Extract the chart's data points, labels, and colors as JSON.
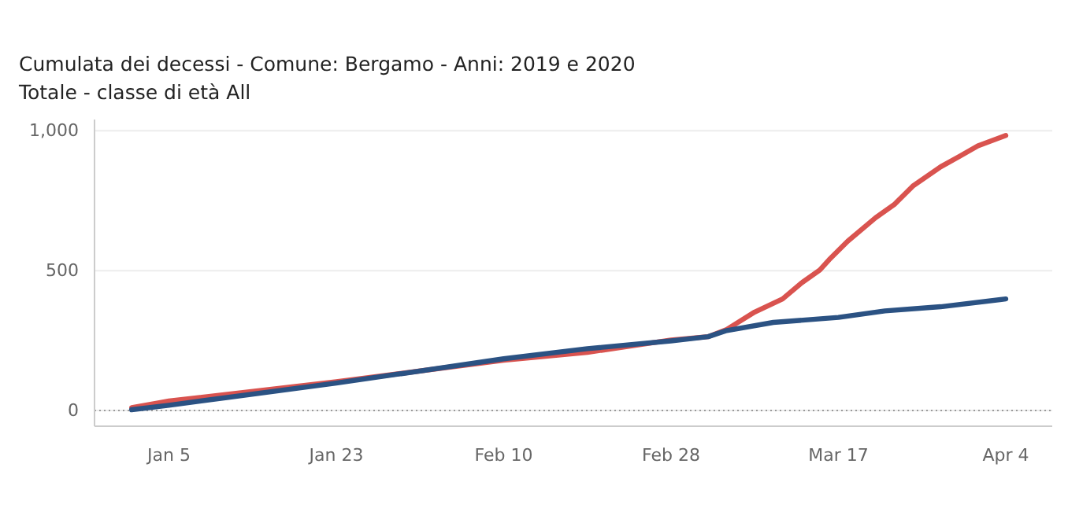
{
  "chart_data": {
    "type": "line",
    "title": "Cumulata dei decessi -  Comune: Bergamo  -  Anni: 2019 e 2020",
    "subtitle": "Totale - classe di età  All",
    "xlim": [
      "2019-12-28",
      "2020-04-09"
    ],
    "xticks": [
      {
        "value": "2020-01-05",
        "label": "Jan 5"
      },
      {
        "value": "2020-01-23",
        "label": "Jan 23"
      },
      {
        "value": "2020-02-10",
        "label": "Feb 10"
      },
      {
        "value": "2020-02-28",
        "label": "Feb 28"
      },
      {
        "value": "2020-03-17",
        "label": "Mar 17"
      },
      {
        "value": "2020-04-04",
        "label": "Apr 4"
      }
    ],
    "ylim": [
      -56,
      1040
    ],
    "yticks": [
      0,
      500,
      {
        "value": 1000,
        "label": "1,000"
      }
    ],
    "grid": "y",
    "line_style": "solid",
    "ref_lines": [
      {
        "axis": "y",
        "value": 0,
        "color": "#999999",
        "line_style": "dotted"
      }
    ],
    "series": [
      {
        "color": "#d9534f",
        "x": [
          "2020-01-01",
          "2020-01-05",
          "2020-01-23",
          "2020-02-10",
          "2020-02-19",
          "2020-02-28",
          "2020-03-03",
          "2020-03-05",
          "2020-03-08",
          "2020-03-11",
          "2020-03-13",
          "2020-03-15",
          "2020-03-16",
          "2020-03-18",
          "2020-03-21",
          "2020-03-23",
          "2020-03-25",
          "2020-03-28",
          "2020-03-30",
          "2020-04-01",
          "2020-04-04"
        ],
        "values": [
          10,
          34,
          103,
          180,
          208,
          252,
          264,
          290,
          352,
          399,
          455,
          502,
          539,
          605,
          689,
          736,
          802,
          871,
          908,
          946,
          983
        ]
      },
      {
        "color": "#2b5283",
        "x": [
          "2020-01-01",
          "2020-01-05",
          "2020-01-23",
          "2020-02-10",
          "2020-02-19",
          "2020-02-28",
          "2020-03-03",
          "2020-03-05",
          "2020-03-10",
          "2020-03-17",
          "2020-03-22",
          "2020-03-28",
          "2020-04-04"
        ],
        "values": [
          3,
          19,
          98,
          185,
          221,
          249,
          264,
          286,
          315,
          333,
          356,
          371,
          399
        ]
      }
    ]
  }
}
